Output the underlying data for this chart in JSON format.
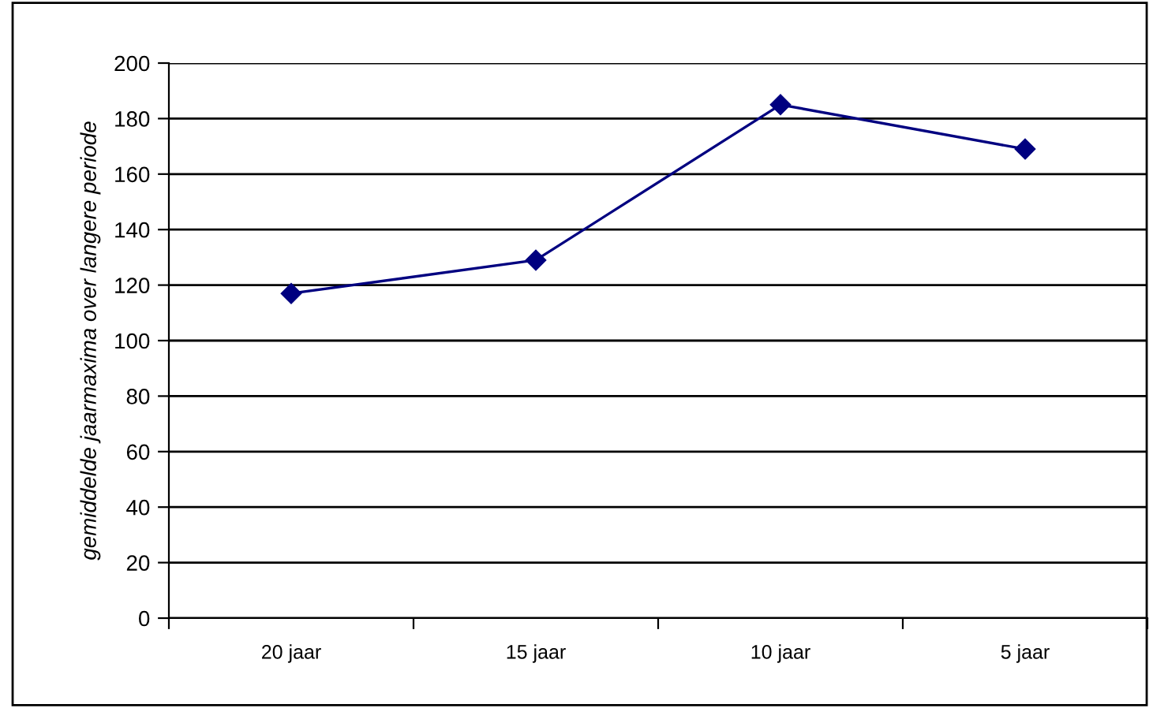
{
  "chart_data": {
    "type": "line",
    "ylabel": "gemiddelde jaarmaxima over langere periode",
    "categories": [
      "20 jaar",
      "15 jaar",
      "10 jaar",
      "5 jaar"
    ],
    "series": [
      {
        "color": "#000080",
        "values": [
          117,
          129,
          185,
          169
        ]
      }
    ],
    "ylim": [
      0,
      200
    ],
    "yticks": [
      0,
      20,
      40,
      60,
      80,
      100,
      120,
      140,
      160,
      180,
      200
    ],
    "grid": "y",
    "marker": "diamond",
    "line_style": "solid",
    "legend": false
  }
}
